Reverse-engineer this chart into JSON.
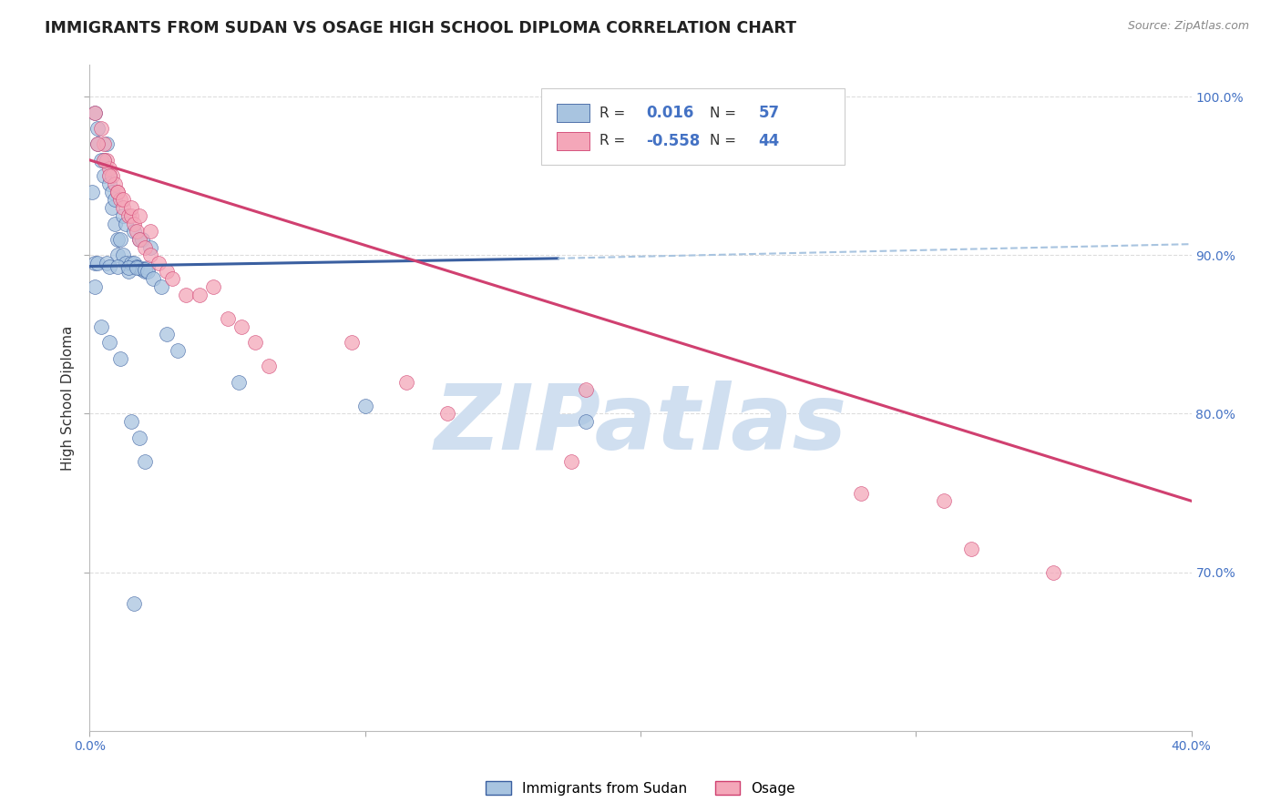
{
  "title": "IMMIGRANTS FROM SUDAN VS OSAGE HIGH SCHOOL DIPLOMA CORRELATION CHART",
  "source": "Source: ZipAtlas.com",
  "ylabel": "High School Diploma",
  "legend_entry1": "Immigrants from Sudan",
  "legend_entry2": "Osage",
  "x_min": 0.0,
  "x_max": 0.4,
  "y_min": 0.6,
  "y_max": 1.02,
  "blue_scatter_x": [
    0.002,
    0.003,
    0.005,
    0.006,
    0.007,
    0.008,
    0.009,
    0.01,
    0.01,
    0.011,
    0.012,
    0.013,
    0.014,
    0.015,
    0.016,
    0.017,
    0.018,
    0.019,
    0.02,
    0.021,
    0.003,
    0.004,
    0.005,
    0.007,
    0.008,
    0.009,
    0.012,
    0.013,
    0.016,
    0.018,
    0.019,
    0.022,
    0.001,
    0.002,
    0.003,
    0.006,
    0.007,
    0.01,
    0.014,
    0.017,
    0.02,
    0.021,
    0.023,
    0.026,
    0.028,
    0.032,
    0.054,
    0.1,
    0.18,
    0.002,
    0.004,
    0.007,
    0.011,
    0.015,
    0.016,
    0.018,
    0.02
  ],
  "blue_scatter_y": [
    0.99,
    0.97,
    0.96,
    0.97,
    0.95,
    0.93,
    0.92,
    0.91,
    0.9,
    0.91,
    0.9,
    0.895,
    0.89,
    0.895,
    0.895,
    0.893,
    0.892,
    0.891,
    0.89,
    0.892,
    0.98,
    0.96,
    0.95,
    0.945,
    0.94,
    0.935,
    0.925,
    0.92,
    0.915,
    0.91,
    0.91,
    0.905,
    0.94,
    0.895,
    0.895,
    0.895,
    0.893,
    0.893,
    0.892,
    0.892,
    0.891,
    0.89,
    0.885,
    0.88,
    0.85,
    0.84,
    0.82,
    0.805,
    0.795,
    0.88,
    0.855,
    0.845,
    0.835,
    0.795,
    0.68,
    0.785,
    0.77
  ],
  "pink_scatter_x": [
    0.002,
    0.004,
    0.005,
    0.006,
    0.007,
    0.008,
    0.009,
    0.01,
    0.011,
    0.012,
    0.014,
    0.015,
    0.016,
    0.017,
    0.018,
    0.02,
    0.022,
    0.025,
    0.028,
    0.03,
    0.035,
    0.04,
    0.05,
    0.055,
    0.06,
    0.065,
    0.115,
    0.13,
    0.175,
    0.31,
    0.003,
    0.005,
    0.007,
    0.01,
    0.012,
    0.015,
    0.018,
    0.022,
    0.045,
    0.095,
    0.18,
    0.28,
    0.32,
    0.35
  ],
  "pink_scatter_y": [
    0.99,
    0.98,
    0.97,
    0.96,
    0.955,
    0.95,
    0.945,
    0.94,
    0.935,
    0.93,
    0.925,
    0.925,
    0.92,
    0.915,
    0.91,
    0.905,
    0.9,
    0.895,
    0.89,
    0.885,
    0.875,
    0.875,
    0.86,
    0.855,
    0.845,
    0.83,
    0.82,
    0.8,
    0.77,
    0.745,
    0.97,
    0.96,
    0.95,
    0.94,
    0.935,
    0.93,
    0.925,
    0.915,
    0.88,
    0.845,
    0.815,
    0.75,
    0.715,
    0.7
  ],
  "blue_line_x": [
    0.0,
    0.17
  ],
  "blue_line_y": [
    0.893,
    0.898
  ],
  "blue_dashed_line_x": [
    0.17,
    0.4
  ],
  "blue_dashed_line_y": [
    0.898,
    0.907
  ],
  "pink_line_x": [
    0.0,
    0.4
  ],
  "pink_line_y": [
    0.96,
    0.745
  ],
  "scatter_color_blue": "#a8c4e0",
  "scatter_color_pink": "#f4a7b9",
  "line_color_blue": "#3a5fa0",
  "line_color_pink": "#d04070",
  "dashed_line_color": "#a8c4e0",
  "watermark": "ZIPatlas",
  "watermark_color": "#d0dff0",
  "title_fontsize": 12.5,
  "axis_label_fontsize": 11,
  "tick_fontsize": 10,
  "background_color": "#ffffff",
  "grid_color": "#dddddd",
  "r1_val": "0.016",
  "n1_val": "57",
  "r2_val": "-0.558",
  "n2_val": "44",
  "tick_color": "#4472c4",
  "legend_text_color": "#333333",
  "legend_val_color": "#4472c4"
}
